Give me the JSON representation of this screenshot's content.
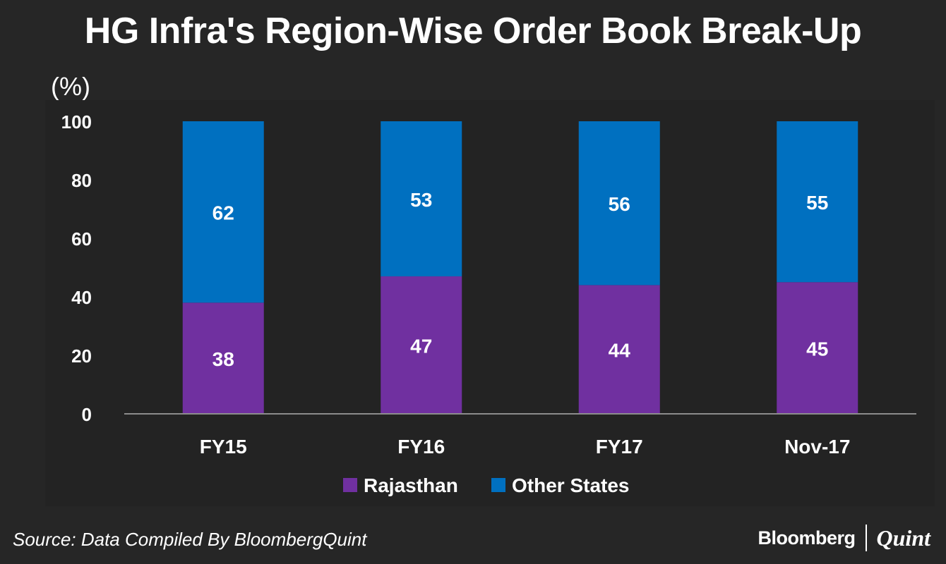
{
  "title": "HG Infra's Region-Wise Order Book Break-Up",
  "unit_label": "(%)",
  "source": "Source: Data Compiled By BloombergQuint",
  "brand": {
    "primary": "Bloomberg",
    "secondary": "Quint"
  },
  "chart_data": {
    "type": "bar",
    "stacked": true,
    "title": "HG Infra's Region-Wise Order Book Break-Up",
    "xlabel": "",
    "ylabel": "(%)",
    "ylim": [
      0,
      100
    ],
    "yticks": [
      "0",
      "20",
      "40",
      "60",
      "80",
      "100"
    ],
    "categories": [
      "FY15",
      "FY16",
      "FY17",
      "Nov-17"
    ],
    "series": [
      {
        "name": "Rajasthan",
        "values": [
          38,
          47,
          44,
          45
        ],
        "labels": [
          "38",
          "47",
          "44",
          "45"
        ],
        "color": "#7030a0"
      },
      {
        "name": "Other States",
        "values": [
          62,
          53,
          56,
          55
        ],
        "labels": [
          "62",
          "53",
          "56",
          "55"
        ],
        "color": "#0070c0"
      }
    ],
    "legend": "bottom-center",
    "grid": false
  }
}
